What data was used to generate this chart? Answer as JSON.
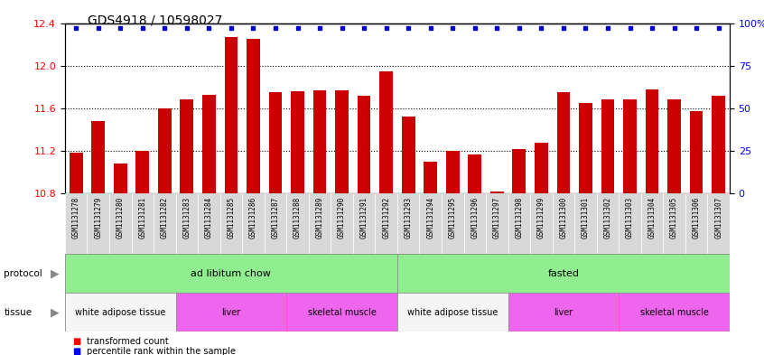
{
  "title": "GDS4918 / 10598027",
  "samples": [
    "GSM1131278",
    "GSM1131279",
    "GSM1131280",
    "GSM1131281",
    "GSM1131282",
    "GSM1131283",
    "GSM1131284",
    "GSM1131285",
    "GSM1131286",
    "GSM1131287",
    "GSM1131288",
    "GSM1131289",
    "GSM1131290",
    "GSM1131291",
    "GSM1131292",
    "GSM1131293",
    "GSM1131294",
    "GSM1131295",
    "GSM1131296",
    "GSM1131297",
    "GSM1131298",
    "GSM1131299",
    "GSM1131300",
    "GSM1131301",
    "GSM1131302",
    "GSM1131303",
    "GSM1131304",
    "GSM1131305",
    "GSM1131306",
    "GSM1131307"
  ],
  "transformed_count": [
    11.18,
    11.48,
    11.08,
    11.2,
    11.6,
    11.68,
    11.73,
    12.27,
    12.25,
    11.75,
    11.76,
    11.77,
    11.77,
    11.72,
    11.95,
    11.52,
    11.1,
    11.2,
    11.17,
    10.82,
    11.22,
    11.28,
    11.75,
    11.65,
    11.68,
    11.68,
    11.78,
    11.68,
    11.57,
    11.72
  ],
  "percentile_rank": [
    97,
    97,
    97,
    97,
    97,
    97,
    97,
    97,
    97,
    97,
    97,
    97,
    97,
    97,
    97,
    97,
    97,
    97,
    97,
    97,
    97,
    97,
    97,
    97,
    97,
    97,
    97,
    97,
    97,
    97
  ],
  "ylim_left": [
    10.8,
    12.4
  ],
  "ylim_right": [
    0,
    100
  ],
  "yticks_left": [
    10.8,
    11.2,
    11.6,
    12.0,
    12.4
  ],
  "yticks_right": [
    0,
    25,
    50,
    75,
    100
  ],
  "bar_color": "#cc0000",
  "dot_color": "#0000cc",
  "protocol_groups": [
    {
      "label": "ad libitum chow",
      "start": 0,
      "end": 14,
      "color": "#90ee90"
    },
    {
      "label": "fasted",
      "start": 15,
      "end": 29,
      "color": "#90ee90"
    }
  ],
  "tissue_groups": [
    {
      "label": "white adipose tissue",
      "start": 0,
      "end": 4,
      "color": "#ffffff"
    },
    {
      "label": "liver",
      "start": 5,
      "end": 9,
      "color": "#ee66ee"
    },
    {
      "label": "skeletal muscle",
      "start": 10,
      "end": 14,
      "color": "#ee66ee"
    },
    {
      "label": "white adipose tissue",
      "start": 15,
      "end": 19,
      "color": "#ffffff"
    },
    {
      "label": "liver",
      "start": 20,
      "end": 24,
      "color": "#ee66ee"
    },
    {
      "label": "skeletal muscle",
      "start": 25,
      "end": 29,
      "color": "#ee66ee"
    }
  ]
}
